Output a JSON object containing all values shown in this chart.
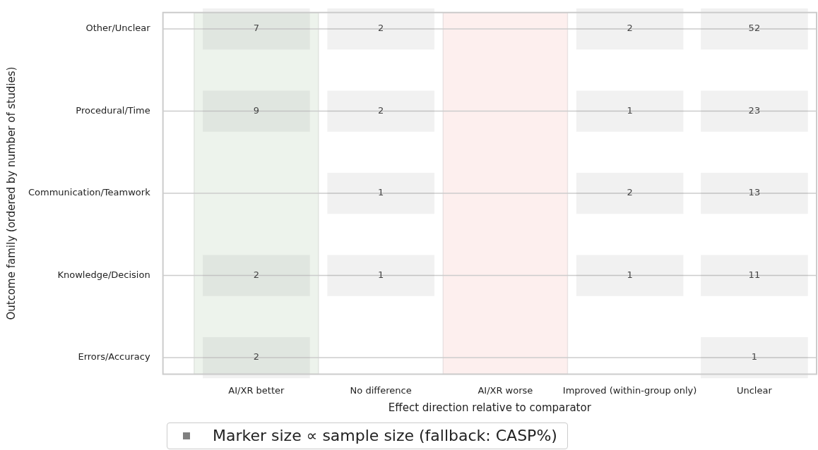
{
  "chart_data": {
    "type": "heatmap",
    "xlabel": "Effect direction relative to comparator",
    "ylabel": "Outcome family (ordered by number of studies)",
    "categories": [
      "AI/XR better",
      "No difference",
      "AI/XR worse",
      "Improved (within-group only)",
      "Unclear"
    ],
    "y_categories": [
      "Other/Unclear",
      "Procedural/Time",
      "Communication/Teamwork",
      "Knowledge/Decision",
      "Errors/Accuracy"
    ],
    "cells": [
      [
        7,
        2,
        null,
        2,
        52
      ],
      [
        9,
        2,
        null,
        1,
        23
      ],
      [
        null,
        1,
        null,
        2,
        13
      ],
      [
        2,
        1,
        null,
        1,
        11
      ],
      [
        2,
        null,
        null,
        null,
        1
      ]
    ],
    "data_labels": true,
    "grid": "y",
    "bands": [
      {
        "axis": "x",
        "from": "AI/XR better",
        "to": "AI/XR better",
        "color": "#edf3ec"
      },
      {
        "axis": "x",
        "from": "AI/XR worse",
        "to": "AI/XR worse",
        "color": "#fdefee"
      }
    ],
    "annotations": [
      "Marker size ∝ sample size (fallback: CASP%)"
    ]
  }
}
